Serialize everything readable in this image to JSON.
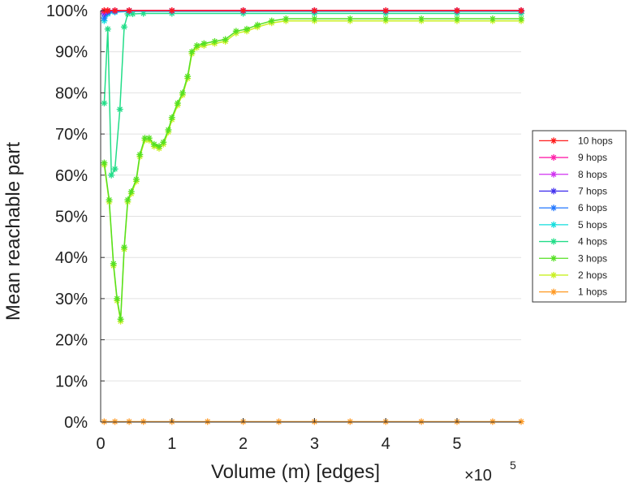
{
  "chart_data": {
    "type": "line",
    "title": "",
    "xlabel": "Volume (m) [edges]",
    "ylabel": "Mean reachable part",
    "x_multiplier_text": "×10",
    "x_multiplier_exp": "5",
    "xlim": [
      0,
      590000
    ],
    "ylim": [
      0,
      100
    ],
    "xticks": [
      0,
      100000,
      200000,
      300000,
      400000,
      500000
    ],
    "xtick_labels": [
      "0",
      "1",
      "2",
      "3",
      "4",
      "5"
    ],
    "yticks": [
      0,
      10,
      20,
      30,
      40,
      50,
      60,
      70,
      80,
      90,
      100
    ],
    "ytick_labels": [
      "0%",
      "10%",
      "20%",
      "30%",
      "40%",
      "50%",
      "60%",
      "70%",
      "80%",
      "90%",
      "100%"
    ],
    "grid": "horizontal",
    "legend_position": "right",
    "series": [
      {
        "name": "10 hops",
        "color": "#ff1a1a",
        "points": [
          [
            5000,
            100
          ],
          [
            10000,
            100
          ],
          [
            20000,
            100
          ],
          [
            40000,
            100
          ],
          [
            100000,
            100
          ],
          [
            200000,
            100
          ],
          [
            300000,
            100
          ],
          [
            400000,
            100
          ],
          [
            500000,
            100
          ],
          [
            590000,
            100
          ]
        ]
      },
      {
        "name": "9 hops",
        "color": "#ff22aa",
        "points": [
          [
            5000,
            99.9
          ],
          [
            10000,
            100
          ],
          [
            20000,
            100
          ],
          [
            40000,
            100
          ],
          [
            100000,
            100
          ],
          [
            200000,
            100
          ],
          [
            300000,
            100
          ],
          [
            400000,
            100
          ],
          [
            500000,
            100
          ],
          [
            590000,
            100
          ]
        ]
      },
      {
        "name": "8 hops",
        "color": "#d030f0",
        "points": [
          [
            5000,
            99.7
          ],
          [
            10000,
            100
          ],
          [
            20000,
            100
          ],
          [
            40000,
            100
          ],
          [
            100000,
            100
          ],
          [
            200000,
            100
          ],
          [
            300000,
            100
          ],
          [
            400000,
            100
          ],
          [
            500000,
            100
          ],
          [
            590000,
            100
          ]
        ]
      },
      {
        "name": "7 hops",
        "color": "#4433ee",
        "points": [
          [
            5000,
            99.2
          ],
          [
            10000,
            99.8
          ],
          [
            20000,
            99.9
          ],
          [
            40000,
            100
          ],
          [
            100000,
            100
          ],
          [
            200000,
            100
          ],
          [
            300000,
            100
          ],
          [
            400000,
            100
          ],
          [
            500000,
            100
          ],
          [
            590000,
            100
          ]
        ]
      },
      {
        "name": "6 hops",
        "color": "#2277ff",
        "points": [
          [
            5000,
            98.2
          ],
          [
            10000,
            99.5
          ],
          [
            20000,
            99.8
          ],
          [
            40000,
            99.9
          ],
          [
            100000,
            99.9
          ],
          [
            200000,
            99.9
          ],
          [
            300000,
            99.9
          ],
          [
            400000,
            99.9
          ],
          [
            500000,
            99.9
          ],
          [
            590000,
            99.9
          ]
        ]
      },
      {
        "name": "5 hops",
        "color": "#11dddd",
        "points": [
          [
            5000,
            97.5
          ],
          [
            10000,
            99.2
          ],
          [
            20000,
            99.6
          ],
          [
            40000,
            99.8
          ],
          [
            100000,
            99.8
          ],
          [
            200000,
            99.8
          ],
          [
            300000,
            99.8
          ],
          [
            400000,
            99.8
          ],
          [
            500000,
            99.8
          ],
          [
            590000,
            99.8
          ]
        ]
      },
      {
        "name": "4 hops",
        "color": "#22dd88",
        "points": [
          [
            5000,
            77.5
          ],
          [
            10000,
            95.5
          ],
          [
            15000,
            60
          ],
          [
            20000,
            61.5
          ],
          [
            27000,
            76
          ],
          [
            33000,
            96
          ],
          [
            38000,
            99.2
          ],
          [
            45000,
            99.2
          ],
          [
            60000,
            99.3
          ],
          [
            100000,
            99.3
          ],
          [
            200000,
            99.3
          ],
          [
            300000,
            99.3
          ],
          [
            400000,
            99.3
          ],
          [
            500000,
            99.3
          ],
          [
            590000,
            99.3
          ]
        ]
      },
      {
        "name": "3 hops",
        "color": "#55e022",
        "points": [
          [
            5000,
            63
          ],
          [
            12000,
            54
          ],
          [
            18000,
            38.5
          ],
          [
            23000,
            30
          ],
          [
            28000,
            25
          ],
          [
            33000,
            42.5
          ],
          [
            38000,
            54
          ],
          [
            43000,
            56
          ],
          [
            50000,
            59
          ],
          [
            55000,
            65
          ],
          [
            62000,
            69
          ],
          [
            68000,
            69
          ],
          [
            75000,
            67.5
          ],
          [
            82000,
            67
          ],
          [
            88000,
            68
          ],
          [
            95000,
            71
          ],
          [
            100000,
            74
          ],
          [
            108000,
            77.5
          ],
          [
            115000,
            80
          ],
          [
            122000,
            84
          ],
          [
            128000,
            90
          ],
          [
            135000,
            91.5
          ],
          [
            145000,
            92
          ],
          [
            160000,
            92.5
          ],
          [
            175000,
            93
          ],
          [
            190000,
            95
          ],
          [
            205000,
            95.5
          ],
          [
            220000,
            96.5
          ],
          [
            240000,
            97.5
          ],
          [
            260000,
            98
          ],
          [
            300000,
            98
          ],
          [
            350000,
            98
          ],
          [
            400000,
            98
          ],
          [
            450000,
            98
          ],
          [
            500000,
            98
          ],
          [
            550000,
            98
          ],
          [
            590000,
            98
          ]
        ]
      },
      {
        "name": "2 hops",
        "color": "#c8f020",
        "points": [
          [
            5000,
            62.5
          ],
          [
            12000,
            53.5
          ],
          [
            18000,
            38
          ],
          [
            23000,
            29.5
          ],
          [
            28000,
            24.5
          ],
          [
            33000,
            42
          ],
          [
            38000,
            53.5
          ],
          [
            43000,
            55.5
          ],
          [
            50000,
            58.5
          ],
          [
            55000,
            64.5
          ],
          [
            62000,
            68.5
          ],
          [
            68000,
            68.5
          ],
          [
            75000,
            67
          ],
          [
            82000,
            66.5
          ],
          [
            88000,
            67.5
          ],
          [
            95000,
            70.5
          ],
          [
            100000,
            73.5
          ],
          [
            108000,
            77
          ],
          [
            115000,
            79.5
          ],
          [
            122000,
            83.5
          ],
          [
            128000,
            89.5
          ],
          [
            135000,
            91
          ],
          [
            145000,
            91.5
          ],
          [
            160000,
            92
          ],
          [
            175000,
            92.5
          ],
          [
            190000,
            94.5
          ],
          [
            205000,
            95
          ],
          [
            220000,
            96
          ],
          [
            240000,
            97
          ],
          [
            260000,
            97.5
          ],
          [
            300000,
            97.5
          ],
          [
            350000,
            97.5
          ],
          [
            400000,
            97.5
          ],
          [
            450000,
            97.5
          ],
          [
            500000,
            97.5
          ],
          [
            550000,
            97.5
          ],
          [
            590000,
            97.5
          ]
        ]
      },
      {
        "name": "1 hops",
        "color": "#ff9922",
        "points": [
          [
            5000,
            0.1
          ],
          [
            20000,
            0.1
          ],
          [
            40000,
            0.1
          ],
          [
            60000,
            0.1
          ],
          [
            100000,
            0.1
          ],
          [
            150000,
            0.1
          ],
          [
            200000,
            0.1
          ],
          [
            250000,
            0.1
          ],
          [
            300000,
            0.1
          ],
          [
            350000,
            0.1
          ],
          [
            400000,
            0.1
          ],
          [
            450000,
            0.1
          ],
          [
            500000,
            0.1
          ],
          [
            550000,
            0.1
          ],
          [
            590000,
            0.1
          ]
        ]
      }
    ]
  }
}
